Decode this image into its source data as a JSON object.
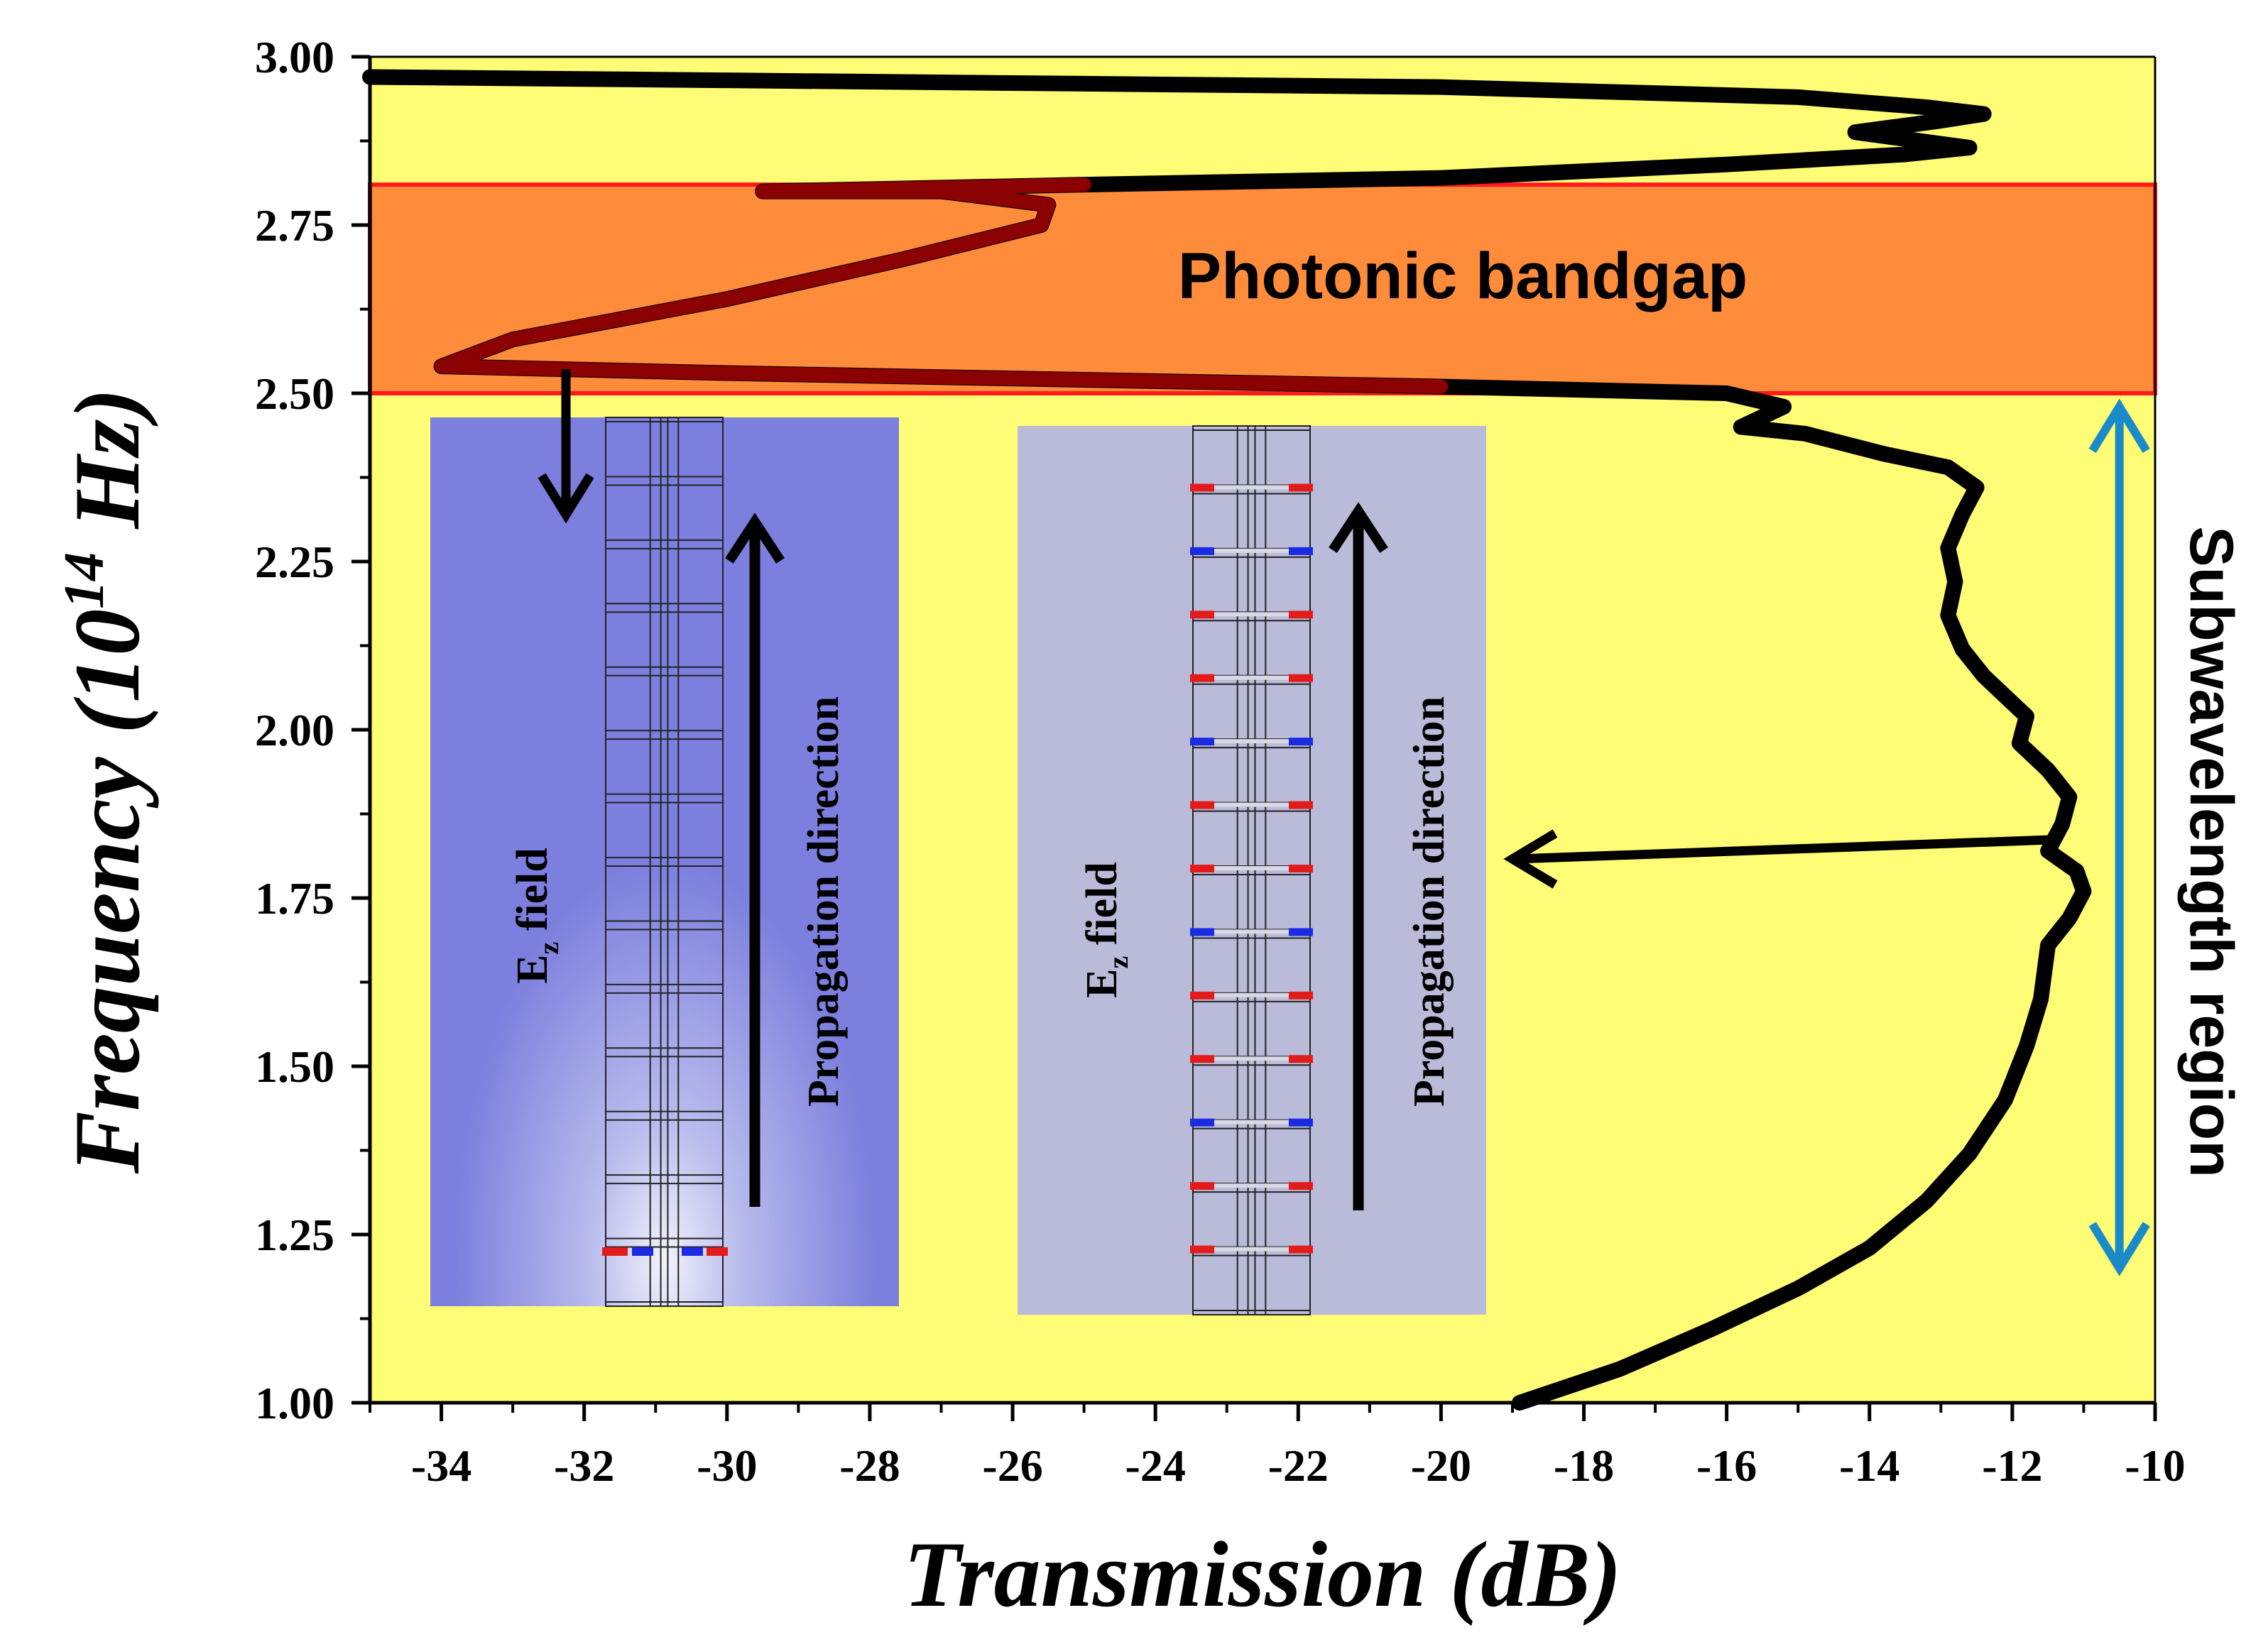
{
  "chart_data": {
    "type": "line",
    "xlabel": "Transmission (dB)",
    "ylabel": {
      "prefix": "Frequency (10",
      "exp": "14",
      "suffix": " Hz)"
    },
    "xlim": [
      -35,
      -10
    ],
    "ylim": [
      1.0,
      3.0
    ],
    "xticks": [
      -34,
      -32,
      -30,
      -28,
      -26,
      -24,
      -22,
      -20,
      -18,
      -16,
      -14,
      -12,
      -10
    ],
    "yticks": [
      {
        "v": 1.0,
        "label": "1.00"
      },
      {
        "v": 1.25,
        "label": "1.25"
      },
      {
        "v": 1.5,
        "label": "1.50"
      },
      {
        "v": 1.75,
        "label": "1.75"
      },
      {
        "v": 2.0,
        "label": "2.00"
      },
      {
        "v": 2.25,
        "label": "2.25"
      },
      {
        "v": 2.5,
        "label": "2.50"
      },
      {
        "v": 2.75,
        "label": "2.75"
      },
      {
        "v": 3.0,
        "label": "3.00"
      }
    ],
    "series": [
      {
        "name": "Transmission",
        "points": [
          [
            -18.9,
            1.0
          ],
          [
            -17.5,
            1.05
          ],
          [
            -16.2,
            1.11
          ],
          [
            -15.0,
            1.17
          ],
          [
            -14.0,
            1.23
          ],
          [
            -13.2,
            1.3
          ],
          [
            -12.6,
            1.37
          ],
          [
            -12.1,
            1.45
          ],
          [
            -11.8,
            1.53
          ],
          [
            -11.6,
            1.6
          ],
          [
            -11.55,
            1.64
          ],
          [
            -11.5,
            1.68
          ],
          [
            -11.2,
            1.72
          ],
          [
            -11.0,
            1.76
          ],
          [
            -11.1,
            1.79
          ],
          [
            -11.5,
            1.82
          ],
          [
            -11.3,
            1.86
          ],
          [
            -11.2,
            1.9
          ],
          [
            -11.5,
            1.94
          ],
          [
            -11.9,
            1.98
          ],
          [
            -11.8,
            2.02
          ],
          [
            -12.1,
            2.05
          ],
          [
            -12.4,
            2.08
          ],
          [
            -12.7,
            2.12
          ],
          [
            -12.9,
            2.17
          ],
          [
            -12.8,
            2.22
          ],
          [
            -12.9,
            2.27
          ],
          [
            -12.7,
            2.32
          ],
          [
            -12.5,
            2.36
          ],
          [
            -12.9,
            2.39
          ],
          [
            -13.8,
            2.41
          ],
          [
            -14.9,
            2.44
          ],
          [
            -15.8,
            2.45
          ],
          [
            -15.2,
            2.48
          ],
          [
            -16.0,
            2.5
          ],
          [
            -20.0,
            2.51
          ],
          [
            -25.0,
            2.52
          ],
          [
            -30.0,
            2.53
          ],
          [
            -34.0,
            2.54
          ],
          [
            -33.0,
            2.58
          ],
          [
            -30.0,
            2.64
          ],
          [
            -27.5,
            2.7
          ],
          [
            -25.6,
            2.75
          ],
          [
            -25.5,
            2.78
          ],
          [
            -27.0,
            2.8
          ],
          [
            -29.5,
            2.8
          ],
          [
            -25.0,
            2.81
          ],
          [
            -20.0,
            2.82
          ],
          [
            -16.0,
            2.84
          ],
          [
            -13.5,
            2.855
          ],
          [
            -12.6,
            2.865
          ],
          [
            -13.3,
            2.875
          ],
          [
            -14.2,
            2.888
          ],
          [
            -13.0,
            2.905
          ],
          [
            -12.4,
            2.915
          ],
          [
            -13.2,
            2.925
          ],
          [
            -15.0,
            2.94
          ],
          [
            -20.0,
            2.955
          ],
          [
            -30.0,
            2.965
          ],
          [
            -35.0,
            2.97
          ]
        ]
      }
    ],
    "bandgap": {
      "y_from": 2.5,
      "y_to": 2.81,
      "label": "Photonic bandgap"
    },
    "subwavelength": {
      "y_from": 1.2,
      "y_to": 2.48,
      "x": -10.5,
      "label": "Subwavelength region"
    },
    "insets": [
      {
        "field_label": "E",
        "field_sub": "z",
        "field_suffix": " field",
        "arrow_label": "Propagation direction",
        "frequency": 2.5
      },
      {
        "field_label": "E",
        "field_sub": "z",
        "field_suffix": " field",
        "arrow_label": "Propagation direction",
        "frequency": 1.78
      }
    ]
  }
}
